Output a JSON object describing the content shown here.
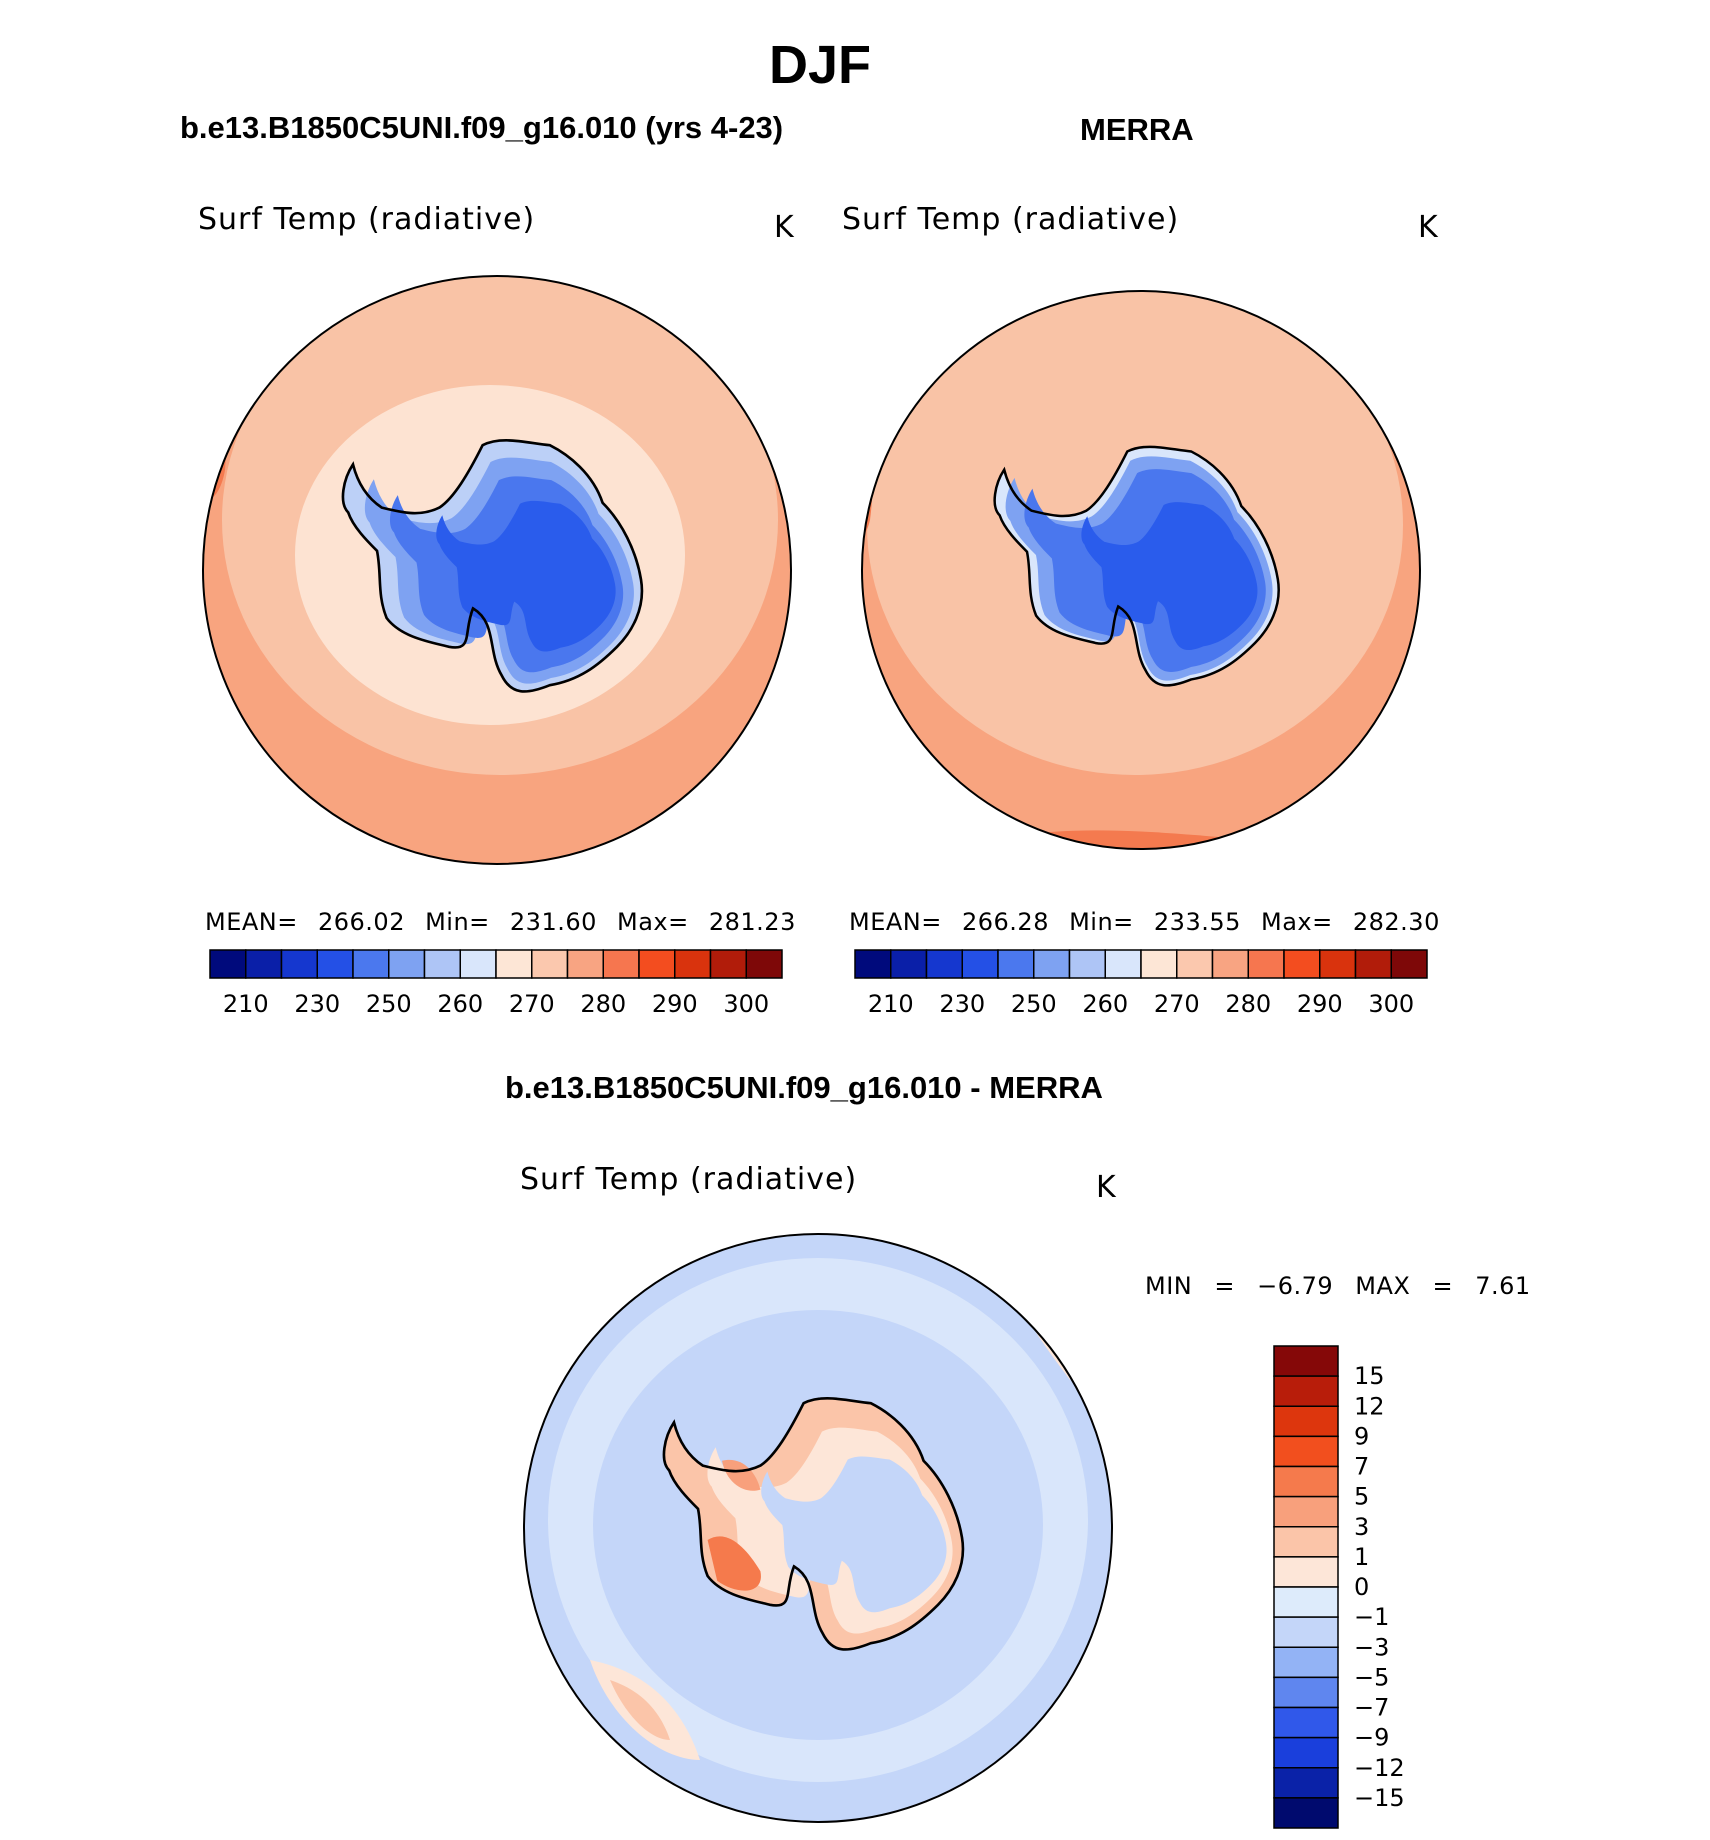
{
  "figure": {
    "season": "DJF",
    "colors": {
      "ocean_warm": "#f7a178",
      "ocean_mid": "#f9c3a6",
      "ocean_cool": "#fde3d2",
      "ice_light": "#bcd0f7",
      "ice_mid": "#7ea2f2",
      "ice_deep": "#3f6ff0",
      "ice_core": "#2356ea",
      "coastline": "#000000"
    }
  },
  "panel_model": {
    "case": "b.e13.B1850C5UNI.f09_g16.010 (yrs 4-23)",
    "variable": "Surf Temp (radiative)",
    "units": "K",
    "stats_text": "MEAN= 266.02 Min= 231.60 Max= 281.23",
    "mean": 266.02,
    "min": 231.6,
    "max": 281.23
  },
  "panel_obs": {
    "case": "MERRA",
    "variable": "Surf Temp (radiative)",
    "units": "K",
    "stats_text": "MEAN= 266.28 Min= 233.55 Max= 282.30",
    "mean": 266.28,
    "min": 233.55,
    "max": 282.3
  },
  "panel_diff": {
    "case": "b.e13.B1850C5UNI.f09_g16.010 - MERRA",
    "variable": "Surf Temp (radiative)",
    "units": "K",
    "minmax_text": "MIN = −6.79 MAX = 7.61",
    "min": -6.79,
    "max": 7.61
  },
  "abs_colorbar": {
    "colors": [
      "#000a7c",
      "#0a1fa8",
      "#1537cf",
      "#2450e6",
      "#4b78ee",
      "#7ea2f2",
      "#aec5f6",
      "#d9e6fb",
      "#fde6d6",
      "#fbc8ae",
      "#f8a482",
      "#f6764f",
      "#f34d1f",
      "#d9330d",
      "#b11c0a",
      "#7e0808"
    ],
    "labels": [
      "210",
      "230",
      "250",
      "260",
      "270",
      "280",
      "290",
      "300"
    ]
  },
  "diff_colorbar": {
    "colors": [
      "#000a6e",
      "#0a22a8",
      "#1a3fdc",
      "#3058ea",
      "#5f86ef",
      "#93b3f5",
      "#c4d6f9",
      "#ddebfb",
      "#fde6d8",
      "#fbc5a9",
      "#f8a07c",
      "#f57a4c",
      "#f24f1e",
      "#dd360d",
      "#b81d0a",
      "#850808"
    ],
    "labels": [
      "15",
      "12",
      "9",
      "7",
      "5",
      "3",
      "1",
      "0",
      "−1",
      "−3",
      "−5",
      "−7",
      "−9",
      "−12",
      "−15"
    ]
  }
}
